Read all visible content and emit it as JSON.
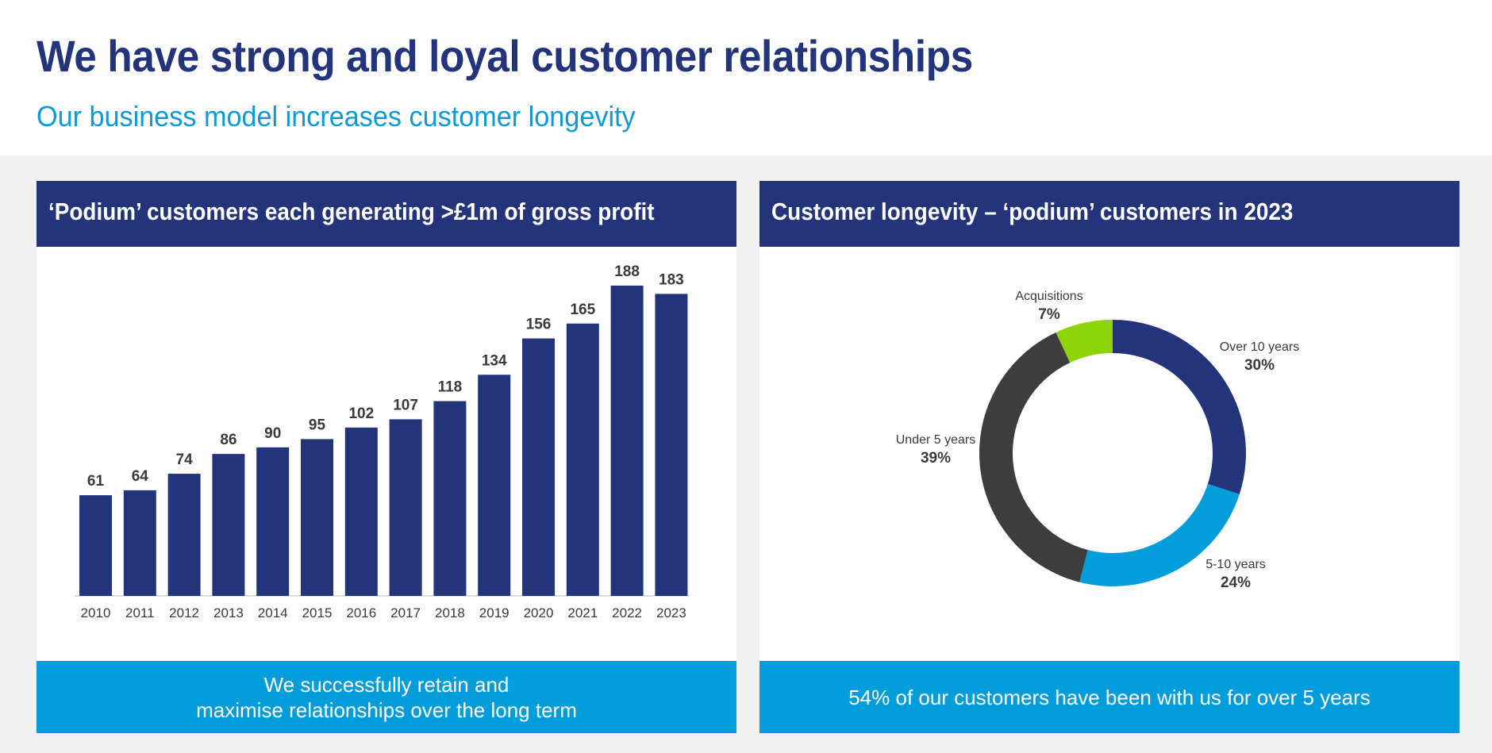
{
  "header": {
    "title": "We have strong and loyal customer relationships",
    "subtitle": "Our business model increases customer longevity"
  },
  "left_panel": {
    "heading": "‘Podium’ customers each generating >£1m of gross profit",
    "footer_line1": "We successfully retain and",
    "footer_line2": "maximise relationships over the long term"
  },
  "right_panel": {
    "heading": "Customer longevity – ‘podium’ customers in 2023",
    "footer": "54% of our customers have been with us for over 5 years"
  },
  "chart_data": [
    {
      "type": "bar",
      "categories": [
        "2010",
        "2011",
        "2012",
        "2013",
        "2014",
        "2015",
        "2016",
        "2017",
        "2018",
        "2019",
        "2020",
        "2021",
        "2022",
        "2023"
      ],
      "values": [
        61,
        64,
        74,
        86,
        90,
        95,
        102,
        107,
        118,
        134,
        156,
        165,
        188,
        183
      ],
      "ylim": [
        0,
        200
      ],
      "grid": false,
      "color": "#24347a"
    },
    {
      "type": "pie",
      "donut": true,
      "labels": [
        "Over 10 years",
        "5-10 years",
        "Under 5 years",
        "Acquisitions"
      ],
      "pct_labels": [
        "30%",
        "24%",
        "39%",
        "7%"
      ],
      "values": [
        30,
        24,
        39,
        7
      ],
      "colors": [
        "#24347a",
        "#049ddb",
        "#3d3d3d",
        "#8dd40b"
      ]
    }
  ]
}
